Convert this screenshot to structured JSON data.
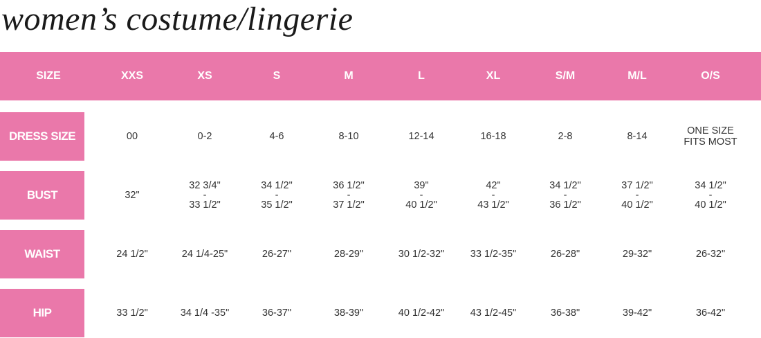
{
  "title": "women’s costume/lingerie",
  "table": {
    "header": [
      "SIZE",
      "XXS",
      "XS",
      "S",
      "M",
      "L",
      "XL",
      "S/M",
      "M/L",
      "O/S"
    ],
    "rows": [
      {
        "label": "DRESS SIZE",
        "cells": [
          [
            "00"
          ],
          [
            "0-2"
          ],
          [
            "4-6"
          ],
          [
            "8-10"
          ],
          [
            "12-14"
          ],
          [
            "16-18"
          ],
          [
            "2-8"
          ],
          [
            "8-14"
          ],
          [
            "ONE SIZE",
            "FITS MOST"
          ]
        ]
      },
      {
        "label": "BUST",
        "cells": [
          [
            "32\""
          ],
          [
            "32 3/4\"",
            "-",
            "33 1/2\""
          ],
          [
            "34 1/2\"",
            "-",
            "35 1/2\""
          ],
          [
            "36 1/2\"",
            "-",
            "37 1/2\""
          ],
          [
            "39\"",
            "-",
            "40 1/2\""
          ],
          [
            "42\"",
            "-",
            "43 1/2\""
          ],
          [
            "34 1/2\"",
            "-",
            "36 1/2\""
          ],
          [
            "37 1/2\"",
            "-",
            "40 1/2\""
          ],
          [
            "34 1/2\"",
            "-",
            "40 1/2\""
          ]
        ]
      },
      {
        "label": "WAIST",
        "cells": [
          [
            "24 1/2\""
          ],
          [
            "24 1/4-25\""
          ],
          [
            "26-27\""
          ],
          [
            "28-29\""
          ],
          [
            "30 1/2-32\""
          ],
          [
            "33 1/2-35\""
          ],
          [
            "26-28\""
          ],
          [
            "29-32\""
          ],
          [
            "26-32\""
          ]
        ]
      },
      {
        "label": "HIP",
        "cells": [
          [
            "33 1/2\""
          ],
          [
            "34 1/4 -35\""
          ],
          [
            "36-37\""
          ],
          [
            "38-39\""
          ],
          [
            "40 1/2-42\""
          ],
          [
            "43 1/2-45\""
          ],
          [
            "36-38\""
          ],
          [
            "39-42\""
          ],
          [
            "36-42\""
          ]
        ]
      }
    ]
  }
}
